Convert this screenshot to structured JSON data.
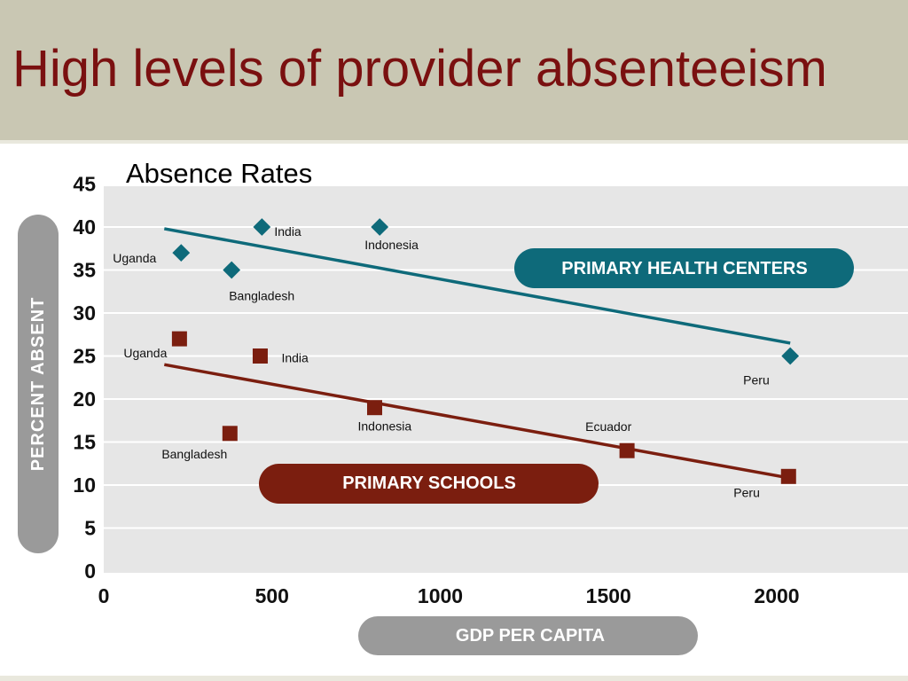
{
  "slide": {
    "title": "High levels of provider absenteeism"
  },
  "chart_data": {
    "type": "scatter",
    "title": "Absence Rates",
    "xlabel": "GDP PER CAPITA",
    "ylabel": "PERCENT ABSENT",
    "xlim": [
      0,
      2400
    ],
    "ylim": [
      0,
      45
    ],
    "xticks": [
      0,
      500,
      1000,
      1500,
      2000
    ],
    "yticks": [
      0,
      5,
      10,
      15,
      20,
      25,
      30,
      35,
      40,
      45
    ],
    "grid": true,
    "series": [
      {
        "name": "PRIMARY HEALTH CENTERS",
        "marker": "diamond",
        "color": "#0e6a7a",
        "points": [
          {
            "label": "Uganda",
            "x": 230,
            "y": 37
          },
          {
            "label": "Bangladesh",
            "x": 380,
            "y": 35
          },
          {
            "label": "India",
            "x": 470,
            "y": 40
          },
          {
            "label": "Indonesia",
            "x": 820,
            "y": 40
          },
          {
            "label": "Peru",
            "x": 2040,
            "y": 25
          }
        ],
        "trend": {
          "x": [
            180,
            2040
          ],
          "y": [
            39.8,
            26.5
          ]
        }
      },
      {
        "name": "PRIMARY SCHOOLS",
        "marker": "square",
        "color": "#7b1e0f",
        "points": [
          {
            "label": "Uganda",
            "x": 225,
            "y": 27
          },
          {
            "label": "Bangladesh",
            "x": 375,
            "y": 16
          },
          {
            "label": "India",
            "x": 465,
            "y": 25
          },
          {
            "label": "Indonesia",
            "x": 805,
            "y": 19
          },
          {
            "label": "Ecuador",
            "x": 1555,
            "y": 14
          },
          {
            "label": "Peru",
            "x": 2035,
            "y": 11
          }
        ],
        "trend": {
          "x": [
            180,
            2040
          ],
          "y": [
            24,
            10.8
          ]
        }
      }
    ]
  },
  "colors": {
    "title": "#7a1010",
    "header_band": "#c9c7b3",
    "plot_bg": "#e6e6e6",
    "label_pill": "#9a9a9a"
  }
}
